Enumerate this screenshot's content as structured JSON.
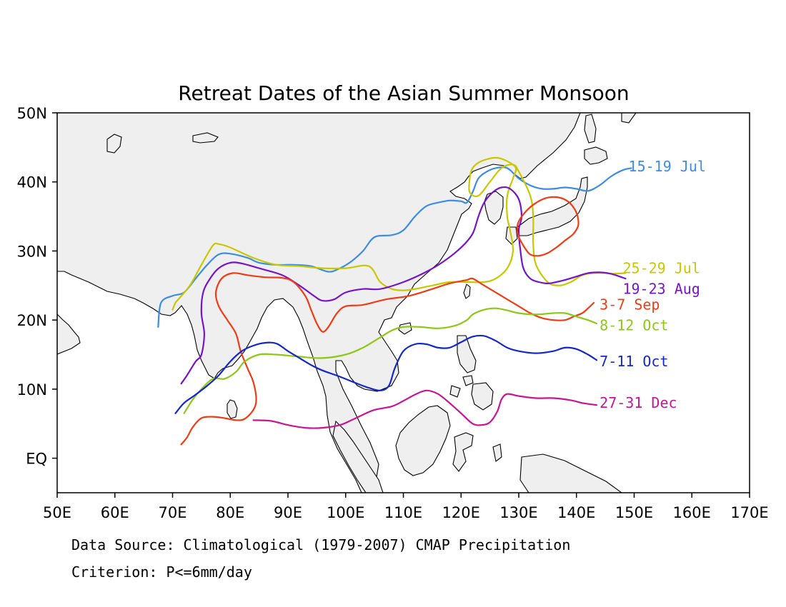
{
  "title": "Retreat Dates of the Asian Summer Monsoon",
  "axes": {
    "x_ticks": [
      "50E",
      "60E",
      "70E",
      "80E",
      "90E",
      "100E",
      "110E",
      "120E",
      "130E",
      "140E",
      "150E",
      "160E",
      "170E"
    ],
    "y_ticks": [
      "50N",
      "40N",
      "30N",
      "20N",
      "10N",
      "EQ"
    ]
  },
  "footer": {
    "source": "Data Source: Climatological (1979-2007) CMAP Precipitation",
    "criterion": "Criterion: P<=6mm/day"
  },
  "colors": {
    "land_fill": "#efefef",
    "coast": "#000000",
    "frame": "#000000"
  },
  "chart_data": {
    "type": "line",
    "title": "Retreat Dates of the Asian Summer Monsoon",
    "xlabel": "",
    "ylabel": "",
    "xlim": [
      50,
      170
    ],
    "ylim": [
      -5,
      50
    ],
    "x_units": "degrees east longitude",
    "y_units": "degrees latitude",
    "grid": false,
    "series": [
      {
        "name": "15-19 Jul",
        "color": "#3c8ce6",
        "points": [
          [
            67.5,
            19
          ],
          [
            68,
            22.5
          ],
          [
            70,
            23.5
          ],
          [
            72,
            24
          ],
          [
            74,
            26
          ],
          [
            76,
            28
          ],
          [
            78,
            29.5
          ],
          [
            80,
            29.6
          ],
          [
            83,
            29
          ],
          [
            85,
            28.3
          ],
          [
            88,
            28
          ],
          [
            91,
            28
          ],
          [
            94,
            27.8
          ],
          [
            97,
            27
          ],
          [
            99,
            27.5
          ],
          [
            101,
            28.5
          ],
          [
            103,
            30
          ],
          [
            105,
            32
          ],
          [
            108,
            32.3
          ],
          [
            110,
            33
          ],
          [
            112,
            35
          ],
          [
            114,
            36.5
          ],
          [
            116,
            37
          ],
          [
            118,
            37.3
          ],
          [
            120,
            37.2
          ],
          [
            121,
            37
          ],
          [
            122,
            38.5
          ],
          [
            123,
            40.5
          ],
          [
            124.5,
            41.5
          ],
          [
            126,
            42
          ],
          [
            128,
            42
          ],
          [
            130,
            40.5
          ],
          [
            132,
            39.5
          ],
          [
            134,
            39
          ],
          [
            136,
            39
          ],
          [
            138,
            39.2
          ],
          [
            140,
            39
          ],
          [
            142,
            38.7
          ],
          [
            144,
            39.5
          ],
          [
            146,
            40.8
          ],
          [
            148,
            41.7
          ],
          [
            149.5,
            42
          ]
        ]
      },
      {
        "name": "25-29 Jul",
        "color": "#c8c800",
        "points": [
          [
            70,
            21.5
          ],
          [
            70.5,
            22.5
          ],
          [
            71,
            23
          ],
          [
            73,
            25
          ],
          [
            75,
            28
          ],
          [
            77,
            30.8
          ],
          [
            78,
            31
          ],
          [
            80,
            30.5
          ],
          [
            84,
            29
          ],
          [
            88,
            28
          ],
          [
            92,
            27.8
          ],
          [
            96,
            27.5
          ],
          [
            100,
            27.5
          ],
          [
            104,
            27.8
          ],
          [
            106,
            25.5
          ],
          [
            108,
            24.5
          ],
          [
            110,
            24.3
          ],
          [
            112,
            24.5
          ],
          [
            115,
            25
          ],
          [
            118,
            25.5
          ],
          [
            121,
            25.5
          ],
          [
            124,
            25.5
          ],
          [
            126,
            26
          ],
          [
            128,
            27.5
          ],
          [
            129,
            30
          ],
          [
            128.5,
            33
          ],
          [
            128,
            35
          ],
          [
            128,
            38
          ],
          [
            129,
            40.5
          ],
          [
            129.5,
            42
          ],
          [
            128,
            43
          ],
          [
            126,
            43.5
          ],
          [
            123.5,
            43
          ],
          [
            122,
            42
          ],
          [
            121.5,
            40.5
          ],
          [
            121.5,
            38.5
          ],
          [
            123,
            38
          ],
          [
            125,
            40
          ],
          [
            127,
            42
          ],
          [
            129,
            42.5
          ],
          [
            130,
            41.5
          ],
          [
            132,
            38
          ],
          [
            132.5,
            35
          ],
          [
            132.5,
            31
          ],
          [
            133,
            28
          ],
          [
            135,
            25.5
          ],
          [
            137,
            25
          ],
          [
            139,
            25.5
          ],
          [
            141,
            26.5
          ],
          [
            143,
            26.8
          ],
          [
            145,
            26.8
          ],
          [
            146,
            26.7
          ],
          [
            148.5,
            26.8
          ]
        ]
      },
      {
        "name": "19-23 Aug",
        "color": "#7814c8",
        "points": [
          [
            71.5,
            10.8
          ],
          [
            72.5,
            12
          ],
          [
            74,
            14
          ],
          [
            75,
            15
          ],
          [
            75.5,
            18
          ],
          [
            75,
            21
          ],
          [
            75.3,
            24
          ],
          [
            76.5,
            26
          ],
          [
            78,
            27.5
          ],
          [
            80,
            28.3
          ],
          [
            82,
            28.2
          ],
          [
            85,
            27.5
          ],
          [
            89,
            26.5
          ],
          [
            92,
            25
          ],
          [
            94.5,
            23.5
          ],
          [
            96,
            22.8
          ],
          [
            98,
            23
          ],
          [
            100,
            24
          ],
          [
            103,
            24.5
          ],
          [
            106,
            24.5
          ],
          [
            110,
            25.5
          ],
          [
            114,
            27
          ],
          [
            117,
            28.5
          ],
          [
            120,
            30.5
          ],
          [
            122,
            32.5
          ],
          [
            123,
            35
          ],
          [
            124,
            37
          ],
          [
            125.5,
            38.5
          ],
          [
            127,
            39.2
          ],
          [
            128.5,
            39
          ],
          [
            130,
            37.5
          ],
          [
            130.5,
            35
          ],
          [
            130,
            33
          ],
          [
            130.3,
            30
          ],
          [
            130.8,
            27.5
          ],
          [
            132,
            26
          ],
          [
            133.5,
            25.5
          ],
          [
            135,
            25.3
          ],
          [
            136.5,
            25.5
          ],
          [
            138,
            25.8
          ],
          [
            140,
            26.3
          ],
          [
            142,
            26.8
          ],
          [
            144,
            26.9
          ],
          [
            146,
            26.7
          ],
          [
            148.5,
            26
          ]
        ]
      },
      {
        "name": "3-7 Sep",
        "color": "#f03c14",
        "points": [
          [
            71.5,
            2
          ],
          [
            72.5,
            3
          ],
          [
            73.5,
            4.5
          ],
          [
            75,
            5.8
          ],
          [
            77,
            6
          ],
          [
            79,
            5.8
          ],
          [
            81,
            5.5
          ],
          [
            82.5,
            5.7
          ],
          [
            84,
            7
          ],
          [
            84.5,
            8.5
          ],
          [
            84,
            11
          ],
          [
            83,
            13
          ],
          [
            81.8,
            15.5
          ],
          [
            81,
            18
          ],
          [
            79.5,
            20
          ],
          [
            78,
            22
          ],
          [
            77.5,
            24
          ],
          [
            78.5,
            26
          ],
          [
            80.5,
            26.8
          ],
          [
            83,
            26.5
          ],
          [
            86,
            26.2
          ],
          [
            89,
            26.1
          ],
          [
            91,
            25.5
          ],
          [
            93,
            23.5
          ],
          [
            94,
            21.5
          ],
          [
            95,
            19.5
          ],
          [
            96,
            18.3
          ],
          [
            97,
            19
          ],
          [
            98.5,
            21
          ],
          [
            100,
            22
          ],
          [
            103,
            22.2
          ],
          [
            107,
            23
          ],
          [
            111,
            23.5
          ],
          [
            115,
            24.5
          ],
          [
            118,
            25.3
          ],
          [
            121,
            25.8
          ],
          [
            122,
            26
          ],
          [
            124,
            25
          ],
          [
            127,
            23.5
          ],
          [
            130,
            22
          ],
          [
            132,
            21
          ],
          [
            134,
            20.3
          ],
          [
            136,
            20
          ],
          [
            138,
            20
          ],
          [
            139.5,
            20.5
          ],
          [
            141,
            21
          ],
          [
            142,
            21.7
          ],
          [
            143,
            22.5
          ]
        ]
      },
      {
        "name": "3-7 Sep (ring)",
        "color": "#f03c14",
        "points": [
          [
            130,
            32
          ],
          [
            131,
            30.5
          ],
          [
            132,
            29.5
          ],
          [
            133.5,
            29.3
          ],
          [
            135,
            29.7
          ],
          [
            136.5,
            30.5
          ],
          [
            138,
            31.5
          ],
          [
            139.5,
            32.5
          ],
          [
            140.3,
            33.7
          ],
          [
            140.2,
            35
          ],
          [
            139.5,
            36.3
          ],
          [
            138.3,
            37.3
          ],
          [
            136.5,
            37.8
          ],
          [
            134.5,
            37.6
          ],
          [
            132.7,
            36.8
          ],
          [
            131.2,
            35.7
          ],
          [
            130,
            34.3
          ],
          [
            129.7,
            33
          ],
          [
            130,
            32
          ]
        ]
      },
      {
        "name": "8-12 Oct",
        "color": "#8cc814",
        "points": [
          [
            72,
            6.5
          ],
          [
            73.5,
            8.5
          ],
          [
            75,
            10
          ],
          [
            77,
            11.5
          ],
          [
            79,
            11.5
          ],
          [
            81,
            12.5
          ],
          [
            82.5,
            14
          ],
          [
            85,
            15
          ],
          [
            88,
            15
          ],
          [
            92,
            14.7
          ],
          [
            96,
            14.5
          ],
          [
            100,
            15
          ],
          [
            103,
            16
          ],
          [
            106,
            17.5
          ],
          [
            108,
            18.5
          ],
          [
            110,
            19
          ],
          [
            113,
            19
          ],
          [
            116,
            18.8
          ],
          [
            119,
            19.2
          ],
          [
            121,
            20
          ],
          [
            122,
            20.8
          ],
          [
            124,
            21.5
          ],
          [
            126,
            21.7
          ],
          [
            128,
            21.4
          ],
          [
            130,
            21
          ],
          [
            133,
            20.8
          ],
          [
            136,
            21
          ],
          [
            138,
            21
          ],
          [
            140,
            20.5
          ],
          [
            142,
            20
          ],
          [
            143.5,
            19.5
          ]
        ]
      },
      {
        "name": "7-11 Oct",
        "color": "#1428c8",
        "points": [
          [
            70.5,
            6.5
          ],
          [
            72,
            8
          ],
          [
            74,
            9.2
          ],
          [
            76,
            10.5
          ],
          [
            78,
            12
          ],
          [
            80,
            14
          ],
          [
            82,
            15.5
          ],
          [
            84,
            16.3
          ],
          [
            86,
            16.7
          ],
          [
            88,
            16.6
          ],
          [
            90,
            15.5
          ],
          [
            92,
            14.5
          ],
          [
            94,
            13.5
          ],
          [
            96,
            12.7
          ],
          [
            99,
            11.8
          ],
          [
            102,
            10.8
          ],
          [
            104,
            10.2
          ],
          [
            106,
            9.8
          ],
          [
            107.5,
            10.5
          ],
          [
            108.5,
            13
          ],
          [
            110,
            15.5
          ],
          [
            112,
            16.5
          ],
          [
            114,
            16.5
          ],
          [
            116,
            16
          ],
          [
            118,
            16
          ],
          [
            120,
            16.8
          ],
          [
            122,
            17.6
          ],
          [
            124,
            17.7
          ],
          [
            126,
            17
          ],
          [
            128,
            16
          ],
          [
            130,
            15.5
          ],
          [
            133,
            15.2
          ],
          [
            136,
            15.5
          ],
          [
            138,
            16
          ],
          [
            140,
            15.8
          ],
          [
            142,
            15
          ],
          [
            143.5,
            14.2
          ]
        ]
      },
      {
        "name": "27-31 Dec",
        "color": "#c81496",
        "points": [
          [
            84,
            5.5
          ],
          [
            87,
            5.4
          ],
          [
            90,
            4.8
          ],
          [
            93,
            4.4
          ],
          [
            96,
            4.4
          ],
          [
            99,
            4.8
          ],
          [
            101,
            5.5
          ],
          [
            103,
            6.3
          ],
          [
            105,
            7
          ],
          [
            108,
            7.5
          ],
          [
            110,
            8.3
          ],
          [
            112,
            9.2
          ],
          [
            114,
            9.8
          ],
          [
            116,
            9.3
          ],
          [
            118,
            8
          ],
          [
            120,
            6.5
          ],
          [
            122,
            5
          ],
          [
            123.5,
            4.8
          ],
          [
            125,
            5.2
          ],
          [
            126.3,
            6.8
          ],
          [
            127,
            8.5
          ],
          [
            128,
            9.3
          ],
          [
            130,
            9
          ],
          [
            133,
            8.7
          ],
          [
            136,
            8.7
          ],
          [
            139,
            8.4
          ],
          [
            141,
            8
          ],
          [
            143.5,
            7.7
          ]
        ]
      }
    ],
    "labels": [
      {
        "text": "15-19 Jul",
        "color": "#3c8ce6"
      },
      {
        "text": "25-29 Jul",
        "color": "#c8c800"
      },
      {
        "text": "19-23 Aug",
        "color": "#7814c8"
      },
      {
        "text": "3-7 Sep",
        "color": "#f03c14"
      },
      {
        "text": "8-12 Oct",
        "color": "#8cc814"
      },
      {
        "text": "7-11 Oct",
        "color": "#1428c8"
      },
      {
        "text": "27-31 Dec",
        "color": "#c81496"
      }
    ]
  }
}
